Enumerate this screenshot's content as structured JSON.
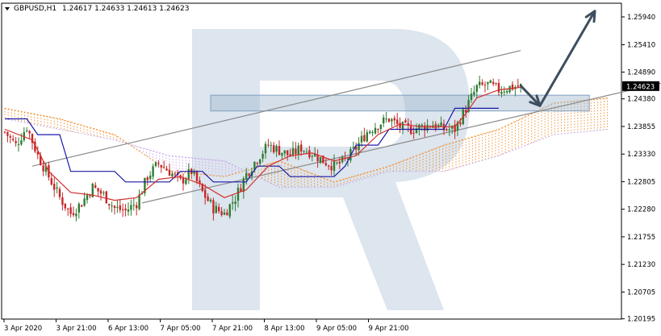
{
  "header": {
    "symbol": "GBPUSD,H1",
    "ohlc": "1.24617 1.24633 1.24613 1.24623"
  },
  "colors": {
    "bull": "#2e7d32",
    "bear": "#c62828",
    "tenkan": "#d32f2f",
    "kijun": "#1a1aa8",
    "cloud_a": "#f08a24",
    "cloud_b": "#c7a7e8",
    "channel": "#8a8a8a",
    "arrow": "#3d4e5e",
    "zone": "#9fb8cf",
    "price_badge": "#000000",
    "watermark": "#dde5ee"
  },
  "chart_data": {
    "type": "candlestick",
    "symbol": "GBPUSD",
    "timeframe": "H1",
    "ylim": [
      1.2019,
      1.262
    ],
    "y_ticks": [
      1.2594,
      1.2541,
      1.2489,
      1.2438,
      1.23855,
      1.2333,
      1.22805,
      1.2228,
      1.21755,
      1.2123,
      1.20705,
      1.20195
    ],
    "y_tick_labels": [
      "1.25940",
      "1.25410",
      "1.24890",
      "1.24380",
      "1.23855",
      "1.23330",
      "1.22805",
      "1.22280",
      "1.21755",
      "1.21230",
      "1.20705",
      "1.20195"
    ],
    "current_price": 1.24623,
    "current_price_label": "1.24623",
    "x_tick_labels": [
      "3 Apr 2020",
      "3 Apr 21:00",
      "6 Apr 13:00",
      "7 Apr 05:00",
      "7 Apr 21:00",
      "8 Apr 13:00",
      "9 Apr 05:00",
      "9 Apr 21:00"
    ],
    "close_path": [
      [
        0,
        1.2375
      ],
      [
        4,
        1.235
      ],
      [
        8,
        1.2385
      ],
      [
        12,
        1.233
      ],
      [
        16,
        1.229
      ],
      [
        20,
        1.225
      ],
      [
        24,
        1.222
      ],
      [
        28,
        1.224
      ],
      [
        32,
        1.227
      ],
      [
        36,
        1.2255
      ],
      [
        40,
        1.223
      ],
      [
        44,
        1.2225
      ],
      [
        48,
        1.224
      ],
      [
        52,
        1.229
      ],
      [
        56,
        1.2315
      ],
      [
        60,
        1.23
      ],
      [
        64,
        1.228
      ],
      [
        68,
        1.23
      ],
      [
        72,
        1.226
      ],
      [
        76,
        1.223
      ],
      [
        80,
        1.222
      ],
      [
        84,
        1.225
      ],
      [
        88,
        1.2295
      ],
      [
        92,
        1.2325
      ],
      [
        96,
        1.235
      ],
      [
        100,
        1.234
      ],
      [
        104,
        1.233
      ],
      [
        108,
        1.2345
      ],
      [
        112,
        1.2335
      ],
      [
        116,
        1.232
      ],
      [
        120,
        1.231
      ],
      [
        124,
        1.232
      ],
      [
        128,
        1.2345
      ],
      [
        132,
        1.2375
      ],
      [
        136,
        1.239
      ],
      [
        140,
        1.24
      ],
      [
        144,
        1.2385
      ],
      [
        148,
        1.238
      ],
      [
        152,
        1.2385
      ],
      [
        156,
        1.239
      ],
      [
        160,
        1.238
      ],
      [
        164,
        1.238
      ],
      [
        168,
        1.242
      ],
      [
        172,
        1.246
      ],
      [
        176,
        1.2465
      ],
      [
        180,
        1.2455
      ],
      [
        184,
        1.246
      ],
      [
        188,
        1.2462
      ]
    ],
    "indicators": {
      "tenkan": [
        [
          0,
          1.238
        ],
        [
          10,
          1.236
        ],
        [
          16,
          1.23
        ],
        [
          24,
          1.226
        ],
        [
          32,
          1.2255
        ],
        [
          40,
          1.2245
        ],
        [
          48,
          1.225
        ],
        [
          56,
          1.2285
        ],
        [
          64,
          1.229
        ],
        [
          72,
          1.2275
        ],
        [
          80,
          1.225
        ],
        [
          88,
          1.2265
        ],
        [
          96,
          1.231
        ],
        [
          104,
          1.233
        ],
        [
          112,
          1.2335
        ],
        [
          120,
          1.232
        ],
        [
          128,
          1.233
        ],
        [
          136,
          1.237
        ],
        [
          144,
          1.239
        ],
        [
          152,
          1.2385
        ],
        [
          160,
          1.2385
        ],
        [
          164,
          1.2385
        ],
        [
          168,
          1.241
        ],
        [
          172,
          1.244
        ],
        [
          180,
          1.2455
        ],
        [
          188,
          1.246
        ]
      ],
      "kijun": [
        [
          0,
          1.24
        ],
        [
          8,
          1.24
        ],
        [
          12,
          1.237
        ],
        [
          20,
          1.237
        ],
        [
          24,
          1.23
        ],
        [
          40,
          1.23
        ],
        [
          44,
          1.228
        ],
        [
          60,
          1.228
        ],
        [
          64,
          1.23
        ],
        [
          72,
          1.23
        ],
        [
          76,
          1.228
        ],
        [
          88,
          1.228
        ],
        [
          92,
          1.231
        ],
        [
          100,
          1.231
        ],
        [
          104,
          1.229
        ],
        [
          120,
          1.229
        ],
        [
          124,
          1.231
        ],
        [
          128,
          1.235
        ],
        [
          136,
          1.235
        ],
        [
          140,
          1.238
        ],
        [
          160,
          1.238
        ],
        [
          164,
          1.242
        ],
        [
          180,
          1.242
        ]
      ],
      "senkou_a": [
        [
          0,
          1.242
        ],
        [
          20,
          1.24
        ],
        [
          40,
          1.237
        ],
        [
          60,
          1.23
        ],
        [
          80,
          1.229
        ],
        [
          100,
          1.232
        ],
        [
          120,
          1.228
        ],
        [
          140,
          1.231
        ],
        [
          160,
          1.235
        ],
        [
          180,
          1.238
        ],
        [
          200,
          1.243
        ],
        [
          220,
          1.244
        ]
      ],
      "senkou_b": [
        [
          0,
          1.24
        ],
        [
          20,
          1.238
        ],
        [
          40,
          1.236
        ],
        [
          60,
          1.233
        ],
        [
          80,
          1.232
        ],
        [
          100,
          1.227
        ],
        [
          120,
          1.227
        ],
        [
          140,
          1.23
        ],
        [
          160,
          1.23
        ],
        [
          180,
          1.233
        ],
        [
          200,
          1.237
        ],
        [
          220,
          1.238
        ]
      ]
    },
    "channel": {
      "upper": [
        [
          10,
          1.231
        ],
        [
          188,
          1.253
        ]
      ],
      "lower": [
        [
          50,
          1.224
        ],
        [
          245,
          1.2475
        ]
      ]
    },
    "zone": {
      "x0": 75,
      "x1": 213,
      "y0": 1.2415,
      "y1": 1.2445
    },
    "arrows": [
      {
        "from": [
          188,
          1.2463
        ],
        "to": [
          195,
          1.2425
        ]
      },
      {
        "from": [
          195,
          1.2425
        ],
        "to": [
          215,
          1.2605
        ]
      }
    ],
    "watermark": "R"
  }
}
